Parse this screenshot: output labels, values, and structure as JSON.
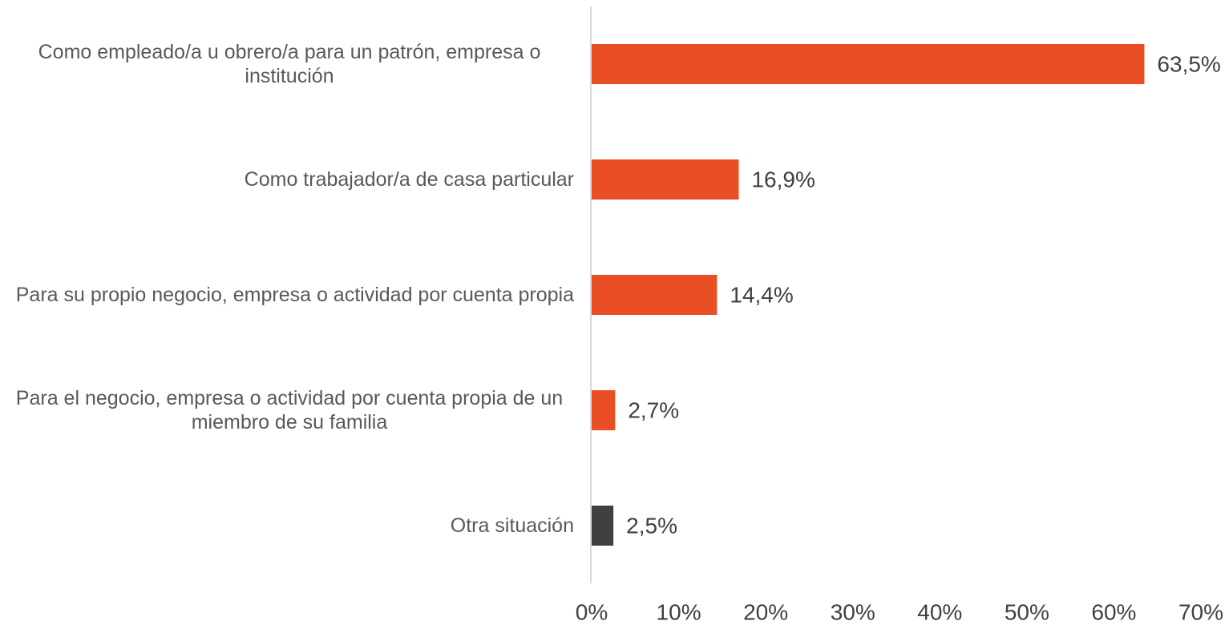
{
  "chart_data": {
    "type": "bar",
    "orientation": "horizontal",
    "categories": [
      "Como empleado/a u obrero/a para un patrón, empresa o institución",
      "Como trabajador/a de casa particular",
      "Para su propio negocio, empresa o actividad por cuenta propia",
      "Para el negocio, empresa o actividad por cuenta propia de un miembro de su familia",
      "Otra situación"
    ],
    "values": [
      63.5,
      16.9,
      14.4,
      2.7,
      2.5
    ],
    "value_labels": [
      "63,5%",
      "16,9%",
      "14,4%",
      "2,7%",
      "2,5%"
    ],
    "colors": [
      "#e94e24",
      "#e94e24",
      "#e94e24",
      "#e94e24",
      "#404040"
    ],
    "xlim": [
      0,
      70
    ],
    "xticks": [
      {
        "value": 0,
        "label": "0%"
      },
      {
        "value": 10,
        "label": "10%"
      },
      {
        "value": 20,
        "label": "20%"
      },
      {
        "value": 30,
        "label": "30%"
      },
      {
        "value": 40,
        "label": "40%"
      },
      {
        "value": 50,
        "label": "50%"
      },
      {
        "value": 60,
        "label": "60%"
      },
      {
        "value": 70,
        "label": "70%"
      }
    ],
    "grid": false
  }
}
